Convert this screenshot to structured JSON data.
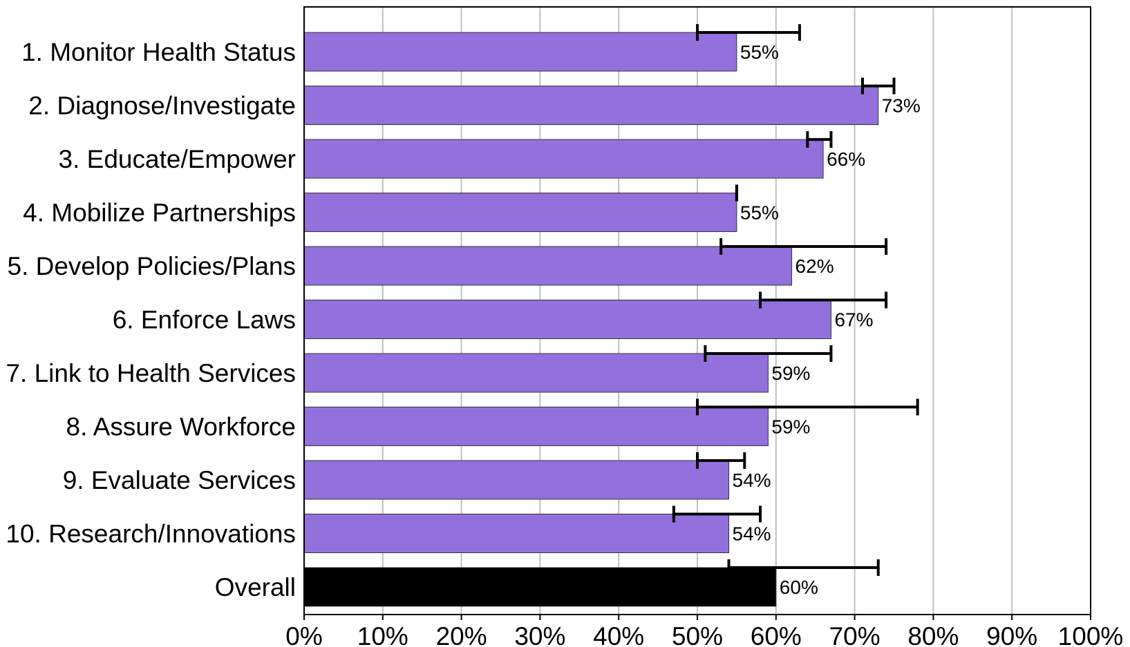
{
  "colors": {
    "bar": "#9370DB",
    "overall_bar": "#000000",
    "error_bar": "#000000",
    "grid": "#c0c0c0"
  },
  "chart_data": {
    "type": "bar",
    "orientation": "horizontal",
    "title": "",
    "xlabel": "",
    "ylabel": "",
    "xlim": [
      0,
      100
    ],
    "grid": true,
    "x_ticks": [
      0,
      10,
      20,
      30,
      40,
      50,
      60,
      70,
      80,
      90,
      100
    ],
    "x_tick_labels": [
      "0%",
      "10%",
      "20%",
      "30%",
      "40%",
      "50%",
      "60%",
      "70%",
      "80%",
      "90%",
      "100%"
    ],
    "categories": [
      "1.  Monitor Health Status",
      "2.  Diagnose/Investigate",
      "3.  Educate/Empower",
      "4.  Mobilize Partnerships",
      "5.  Develop Policies/Plans",
      "6.  Enforce Laws",
      "7.  Link to Health Services",
      "8.  Assure Workforce",
      "9.  Evaluate Services",
      "10.  Research/Innovations",
      "Overall"
    ],
    "values": [
      55,
      73,
      66,
      55,
      62,
      67,
      59,
      59,
      54,
      54,
      60
    ],
    "data_labels": [
      "55%",
      "73%",
      "66%",
      "55%",
      "62%",
      "67%",
      "59%",
      "59%",
      "54%",
      "54%",
      "60%"
    ],
    "error_low": [
      50,
      71,
      64,
      55,
      53,
      58,
      51,
      50,
      50,
      47,
      54
    ],
    "error_high": [
      63,
      75,
      67,
      55,
      74,
      74,
      67,
      78,
      56,
      58,
      73
    ]
  }
}
